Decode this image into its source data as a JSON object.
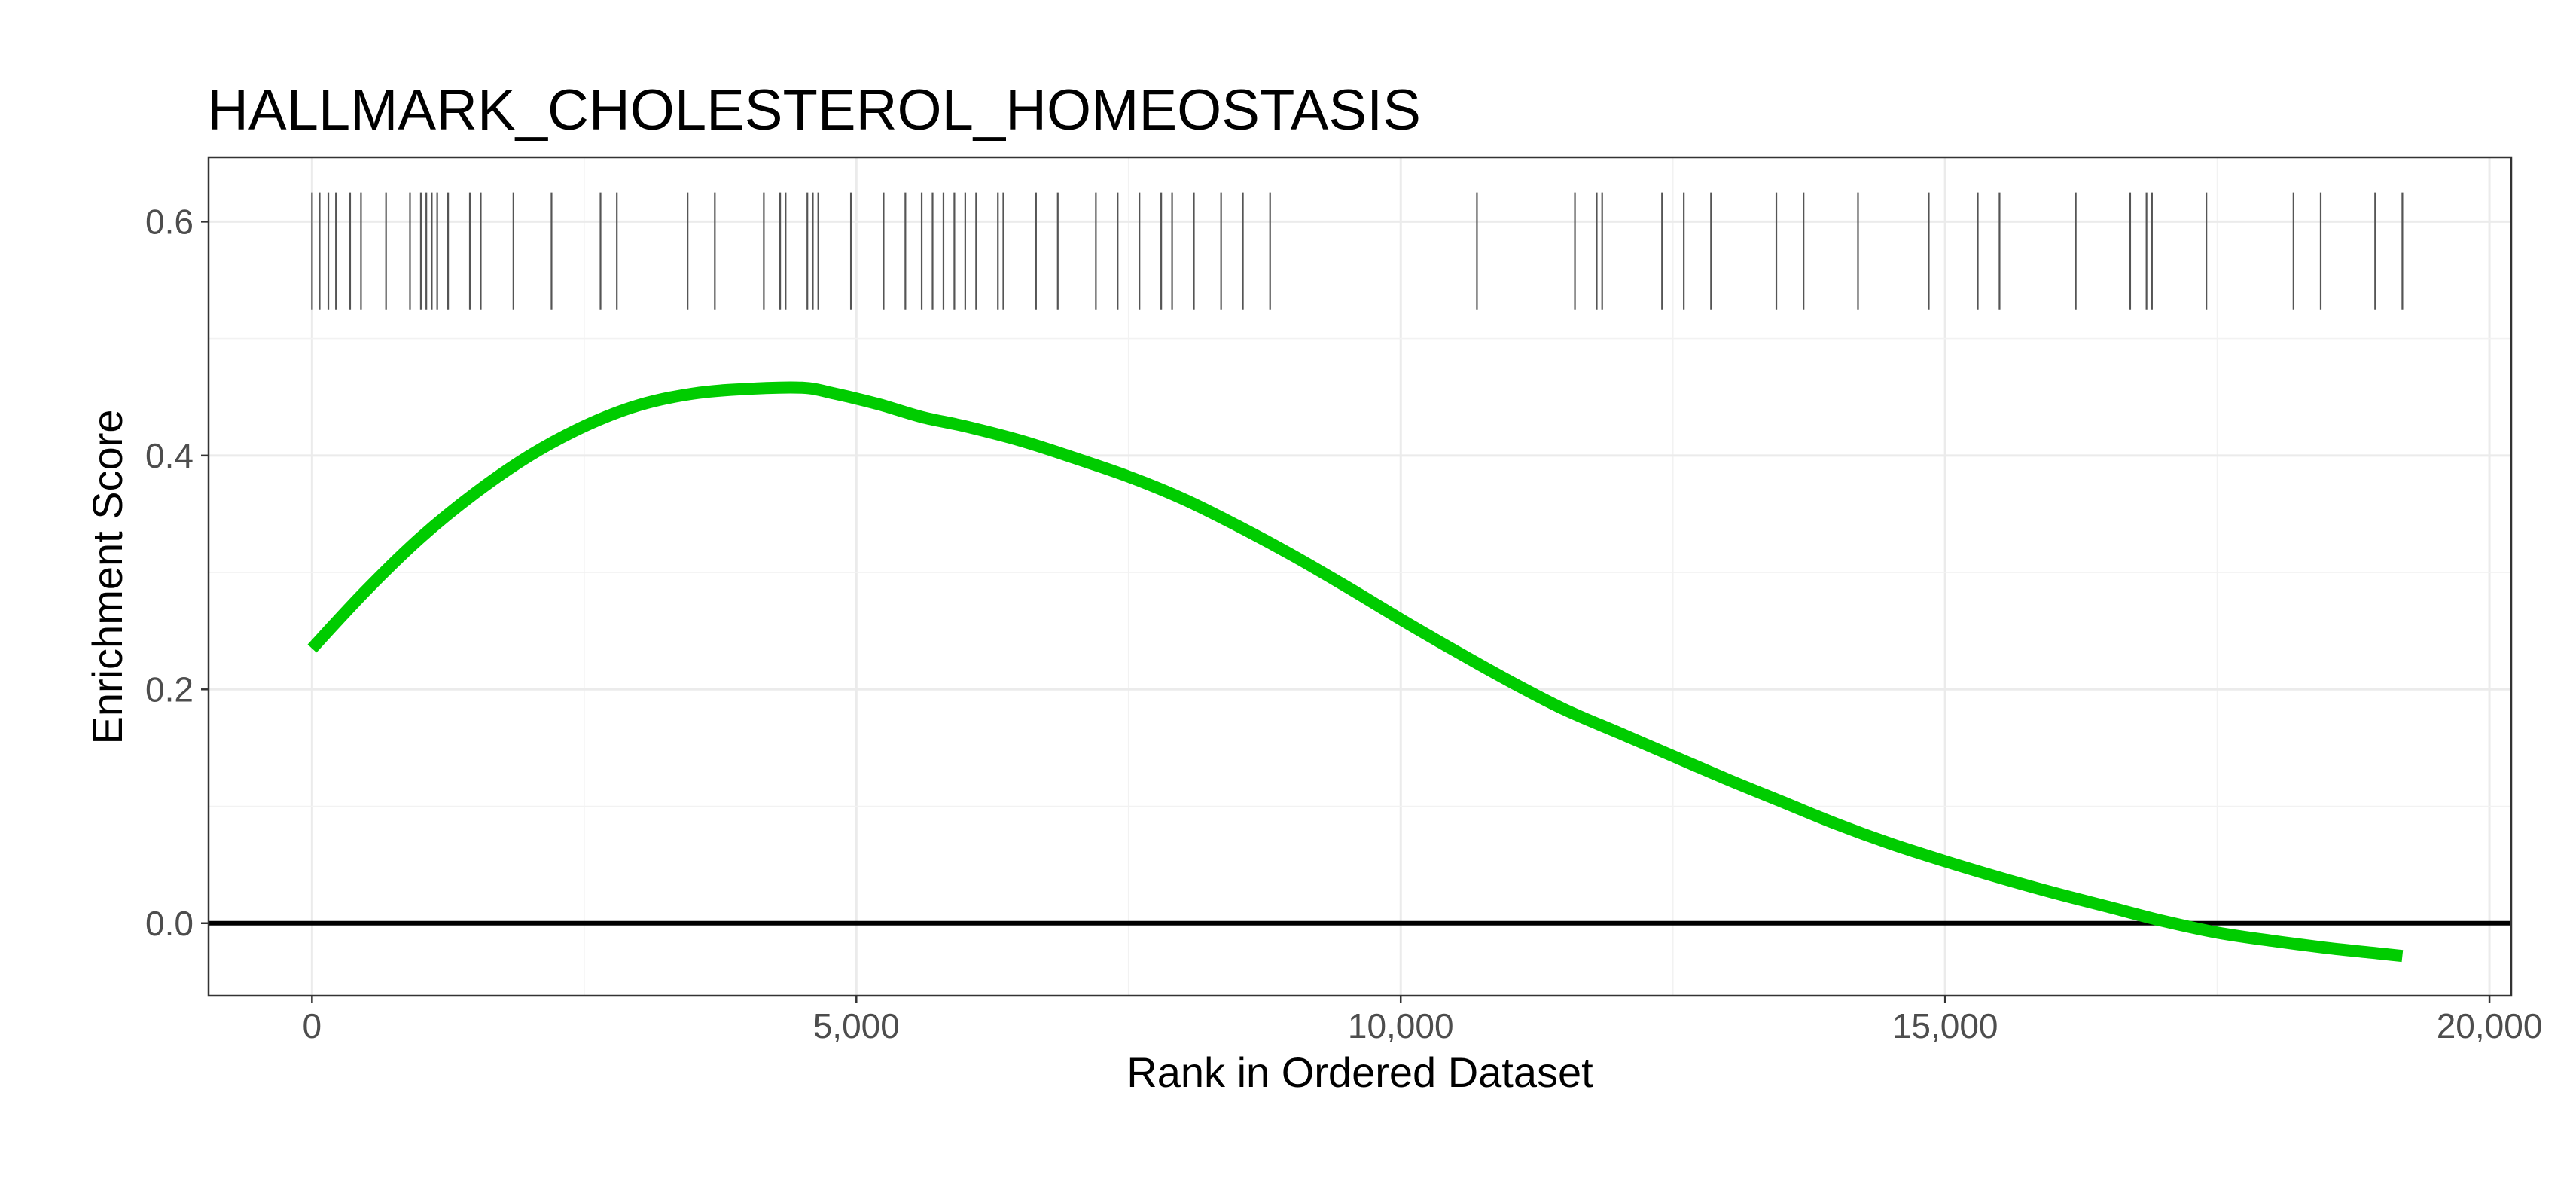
{
  "chart_data": {
    "type": "line",
    "title": "HALLMARK_CHOLESTEROL_HOMEOSTASIS",
    "xlabel": "Rank in Ordered Dataset",
    "ylabel": "Enrichment Score",
    "xlim": [
      -950,
      20200
    ],
    "ylim": [
      -0.062,
      0.655
    ],
    "x_ticks": [
      0,
      5000,
      10000,
      15000,
      20000
    ],
    "x_tick_labels": [
      "0",
      "5,000",
      "10,000",
      "15,000",
      "20,000"
    ],
    "y_ticks": [
      0.0,
      0.2,
      0.4,
      0.6
    ],
    "y_tick_labels": [
      "0.0",
      "0.2",
      "0.4",
      "0.6"
    ],
    "grid": true,
    "line_color": "#00CC00",
    "baseline_color": "#000000",
    "hit_color": "#555555",
    "series": [
      {
        "x": [
          0,
          500,
          1000,
          1500,
          2000,
          2500,
          3000,
          3500,
          4000,
          4500,
          4800,
          5200,
          5600,
          6000,
          6500,
          7000,
          7500,
          8000,
          8500,
          9000,
          9500,
          10000,
          10500,
          11000,
          11500,
          12000,
          12500,
          13000,
          13500,
          14000,
          14500,
          15000,
          15500,
          16000,
          16500,
          17000,
          17500,
          18000,
          18500,
          19000,
          19200
        ],
        "y": [
          0.235,
          0.285,
          0.33,
          0.368,
          0.4,
          0.425,
          0.443,
          0.453,
          0.457,
          0.458,
          0.453,
          0.444,
          0.433,
          0.425,
          0.413,
          0.398,
          0.382,
          0.363,
          0.34,
          0.315,
          0.288,
          0.26,
          0.233,
          0.207,
          0.183,
          0.163,
          0.143,
          0.123,
          0.104,
          0.085,
          0.068,
          0.053,
          0.039,
          0.026,
          0.014,
          0.002,
          -0.008,
          -0.015,
          -0.021,
          -0.026,
          -0.028
        ]
      }
    ],
    "gene_hits": [
      0,
      70,
      150,
      220,
      350,
      450,
      680,
      900,
      1000,
      1050,
      1100,
      1150,
      1250,
      1450,
      1550,
      1850,
      2200,
      2650,
      2800,
      3450,
      3700,
      4150,
      4300,
      4350,
      4550,
      4600,
      4650,
      4950,
      5250,
      5450,
      5600,
      5700,
      5800,
      5900,
      6000,
      6100,
      6300,
      6350,
      6650,
      6850,
      7200,
      7400,
      7600,
      7800,
      7900,
      8100,
      8350,
      8550,
      8800,
      10700,
      11600,
      11800,
      11850,
      12400,
      12600,
      12850,
      13450,
      13700,
      14200,
      14850,
      15300,
      15500,
      16200,
      16700,
      16850,
      16900,
      17400,
      18200,
      18450,
      18950,
      19200
    ]
  }
}
